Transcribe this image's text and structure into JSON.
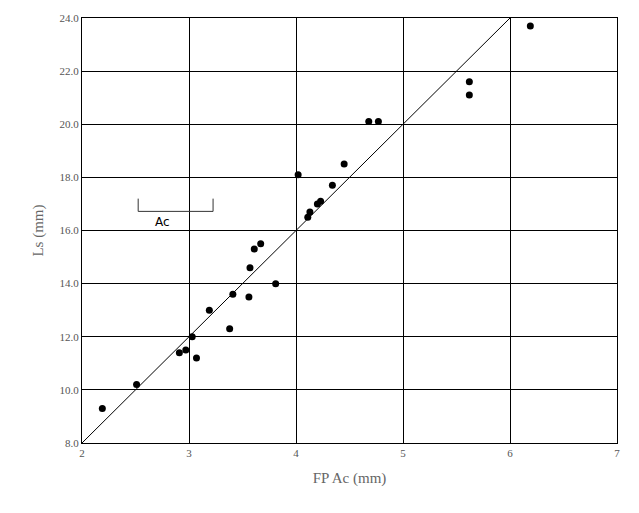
{
  "chart_data": {
    "type": "scatter",
    "x_label": "FP Ac (mm)",
    "y_label": "Ls (mm)",
    "annotations": [
      "Ac"
    ],
    "x": [
      2.19,
      2.51,
      2.91,
      2.97,
      3.03,
      3.07,
      3.19,
      3.38,
      3.41,
      3.56,
      3.57,
      3.61,
      3.67,
      3.81,
      4.02,
      4.11,
      4.13,
      4.2,
      4.23,
      4.34,
      4.45,
      4.68,
      4.77,
      5.62,
      5.62,
      6.19
    ],
    "values": [
      9.3,
      10.2,
      11.4,
      11.5,
      12.0,
      11.2,
      13.0,
      12.3,
      13.6,
      13.5,
      14.6,
      15.3,
      15.5,
      14.0,
      18.1,
      16.5,
      16.7,
      17.0,
      17.1,
      17.7,
      18.5,
      20.1,
      20.1,
      21.1,
      21.6,
      23.7
    ],
    "color": "#000000",
    "marker": "circle",
    "fit_line": {
      "x": [
        2,
        6
      ],
      "values": [
        8,
        24
      ],
      "color": "#000000",
      "line_style": "solid"
    },
    "xlim": [
      2,
      7
    ],
    "ylim": [
      8,
      24
    ],
    "xticks": [
      2,
      3,
      4,
      5,
      6,
      7
    ],
    "yticks": [
      {
        "value": 8,
        "label": "8.0"
      },
      {
        "value": 10,
        "label": "10.0"
      },
      {
        "value": 12,
        "label": "12.0"
      },
      {
        "value": 14,
        "label": "14.0"
      },
      {
        "value": 16,
        "label": "16.0"
      },
      {
        "value": 18,
        "label": "18.0"
      },
      {
        "value": 20,
        "label": "20.0"
      },
      {
        "value": 22,
        "label": "22.0"
      },
      {
        "value": 24,
        "label": "24.0"
      }
    ],
    "grid": true
  }
}
